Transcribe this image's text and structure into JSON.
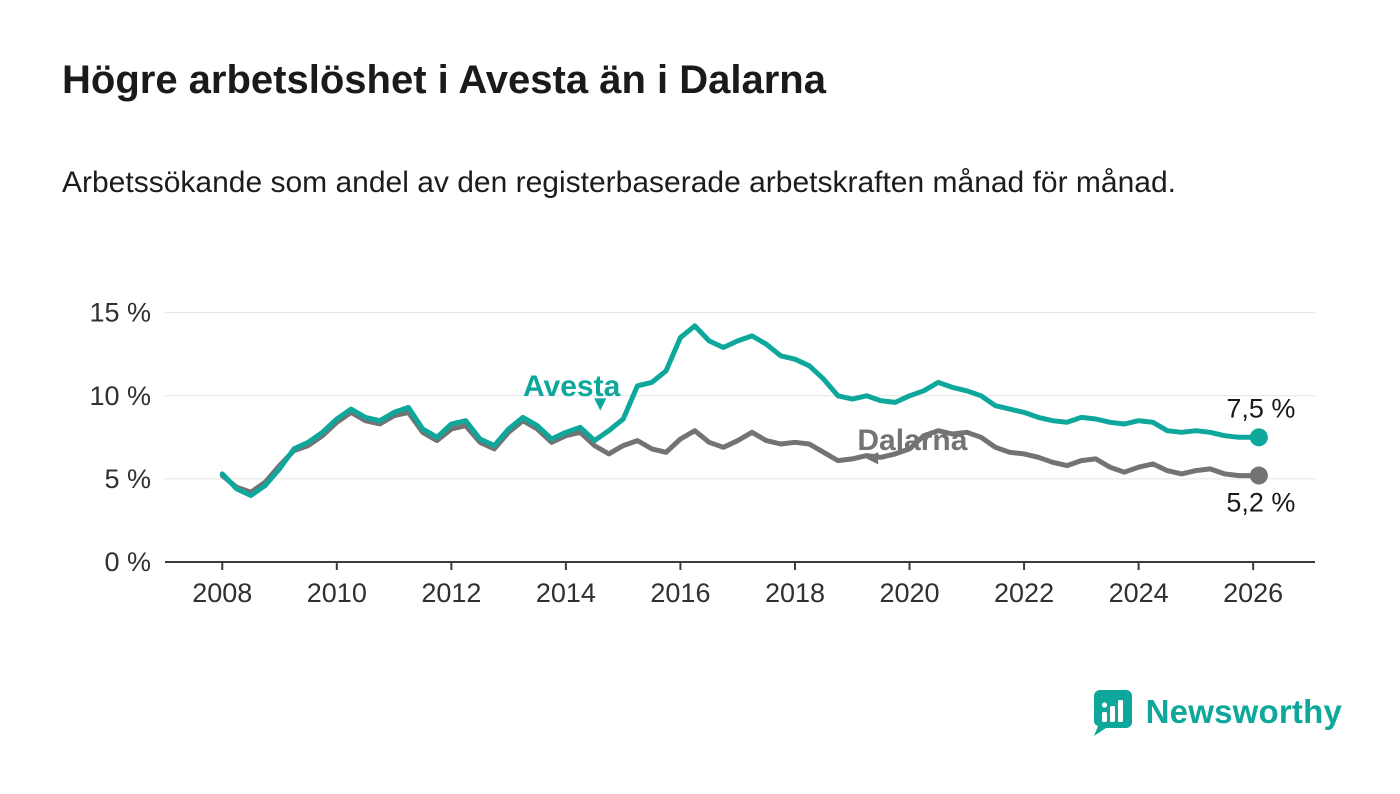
{
  "page": {
    "title": "Högre arbetslöshet i Avesta än i Dalarna",
    "subtitle": "Arbetssökande som andel av den registerbaserade arbetskraften månad för månad."
  },
  "branding": {
    "logo_text": "Newsworthy",
    "logo_color": "#0ea79b"
  },
  "chart_data": {
    "type": "line",
    "title": "Högre arbetslöshet i Avesta än i Dalarna",
    "subtitle": "Arbetssökande som andel av den registerbaserade arbetskraften månad för månad.",
    "xlabel": "",
    "ylabel": "",
    "grid": true,
    "legend_position": "inline-labels",
    "xlim": [
      2007,
      2027.08
    ],
    "ylim": [
      0,
      16
    ],
    "x_ticks": [
      2008,
      2010,
      2012,
      2014,
      2016,
      2018,
      2020,
      2022,
      2024,
      2026
    ],
    "y_ticks": [
      0,
      5,
      10,
      15
    ],
    "y_tick_suffix": " %",
    "x": [
      2008,
      2008.25,
      2008.5,
      2008.75,
      2009,
      2009.25,
      2009.5,
      2009.75,
      2010,
      2010.25,
      2010.5,
      2010.75,
      2011,
      2011.25,
      2011.5,
      2011.75,
      2012,
      2012.25,
      2012.5,
      2012.75,
      2013,
      2013.25,
      2013.5,
      2013.75,
      2014,
      2014.25,
      2014.5,
      2014.75,
      2015,
      2015.25,
      2015.5,
      2015.75,
      2016,
      2016.25,
      2016.5,
      2016.75,
      2017,
      2017.25,
      2017.5,
      2017.75,
      2018,
      2018.25,
      2018.5,
      2018.75,
      2019,
      2019.25,
      2019.5,
      2019.75,
      2020,
      2020.25,
      2020.5,
      2020.75,
      2021,
      2021.25,
      2021.5,
      2021.75,
      2022,
      2022.25,
      2022.5,
      2022.75,
      2023,
      2023.25,
      2023.5,
      2023.75,
      2024,
      2024.25,
      2024.5,
      2024.75,
      2025,
      2025.25,
      2025.5,
      2025.75,
      2026.1
    ],
    "series": [
      {
        "name": "Avesta",
        "color": "#0ea79b",
        "end_value": 7.5,
        "end_label": "7,5 %",
        "end_label_position": "above",
        "values": [
          5.3,
          4.4,
          4.0,
          4.6,
          5.6,
          6.8,
          7.2,
          7.8,
          8.6,
          9.2,
          8.7,
          8.5,
          9.0,
          9.3,
          8.0,
          7.5,
          8.3,
          8.5,
          7.4,
          7.0,
          8.0,
          8.7,
          8.2,
          7.4,
          7.8,
          8.1,
          7.3,
          7.9,
          8.6,
          10.6,
          10.8,
          11.5,
          13.5,
          14.2,
          13.3,
          12.9,
          13.3,
          13.6,
          13.1,
          12.4,
          12.2,
          11.8,
          11.0,
          10.0,
          9.8,
          10.0,
          9.7,
          9.6,
          10.0,
          10.3,
          10.8,
          10.5,
          10.3,
          10.0,
          9.4,
          9.2,
          9.0,
          8.7,
          8.5,
          8.4,
          8.7,
          8.6,
          8.4,
          8.3,
          8.5,
          8.4,
          7.9,
          7.8,
          7.9,
          7.8,
          7.6,
          7.5,
          7.5
        ]
      },
      {
        "name": "Dalarna",
        "color": "#737373",
        "end_value": 5.2,
        "end_label": "5,2 %",
        "end_label_position": "below",
        "values": [
          5.2,
          4.5,
          4.2,
          4.8,
          5.8,
          6.7,
          7.0,
          7.6,
          8.4,
          9.0,
          8.5,
          8.3,
          8.8,
          9.0,
          7.8,
          7.3,
          8.0,
          8.2,
          7.2,
          6.8,
          7.8,
          8.5,
          8.0,
          7.2,
          7.6,
          7.8,
          7.0,
          6.5,
          7.0,
          7.3,
          6.8,
          6.6,
          7.4,
          7.9,
          7.2,
          6.9,
          7.3,
          7.8,
          7.3,
          7.1,
          7.2,
          7.1,
          6.6,
          6.1,
          6.2,
          6.4,
          6.3,
          6.5,
          6.8,
          7.6,
          7.9,
          7.7,
          7.8,
          7.5,
          6.9,
          6.6,
          6.5,
          6.3,
          6.0,
          5.8,
          6.1,
          6.2,
          5.7,
          5.4,
          5.7,
          5.9,
          5.5,
          5.3,
          5.5,
          5.6,
          5.3,
          5.2,
          5.2
        ]
      }
    ],
    "annotations": [
      {
        "text": "Avesta",
        "x": 2014.1,
        "y": 10.0,
        "color": "#0ea79b",
        "arrow": "▾",
        "arrow_x": 2014.6,
        "arrow_y": 9.15
      },
      {
        "text": "Dalarna",
        "x": 2020.05,
        "y": 6.75,
        "color": "#737373",
        "arrow": "◂",
        "arrow_x": 2019.35,
        "arrow_y": 5.9
      }
    ]
  }
}
